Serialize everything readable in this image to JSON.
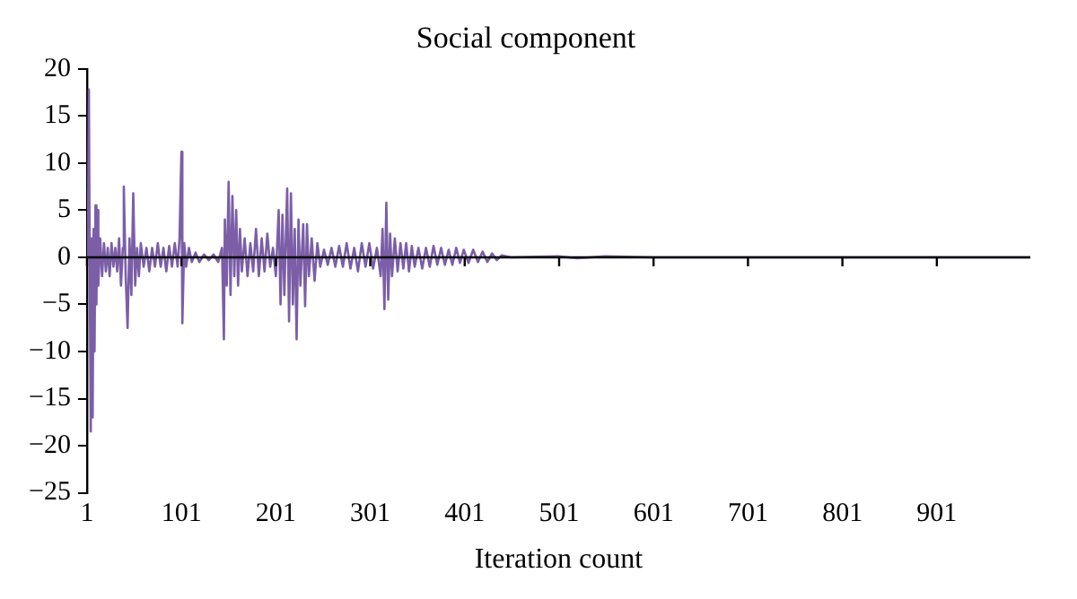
{
  "chart_data": {
    "type": "line",
    "title": "Social component",
    "xlabel": "Iteration count",
    "color": "#7b5ea7",
    "marker": "none",
    "xlim": [
      1,
      1000
    ],
    "xticks": [
      1,
      101,
      201,
      301,
      401,
      501,
      601,
      701,
      801,
      901
    ],
    "ylim": [
      -25,
      20
    ],
    "yticks": [
      -25,
      -20,
      -15,
      -10,
      -5,
      0,
      5,
      10,
      15,
      20
    ],
    "x": [
      1,
      2,
      3,
      4,
      5,
      6,
      7,
      8,
      9,
      10,
      11,
      12,
      13,
      15,
      17,
      19,
      21,
      23,
      25,
      27,
      29,
      31,
      33,
      35,
      37,
      39,
      40,
      42,
      44,
      46,
      48,
      50,
      52,
      54,
      56,
      58,
      61,
      64,
      67,
      70,
      73,
      76,
      79,
      82,
      85,
      88,
      91,
      94,
      97,
      99,
      101,
      102,
      104,
      106,
      109,
      112,
      116,
      120,
      125,
      130,
      135,
      140,
      144,
      146,
      147,
      149,
      151,
      153,
      155,
      157,
      159,
      161,
      163,
      165,
      168,
      171,
      174,
      177,
      180,
      183,
      186,
      189,
      192,
      195,
      198,
      201,
      204,
      206,
      208,
      210,
      213,
      215,
      217,
      219,
      221,
      223,
      225,
      227,
      230,
      232,
      234,
      236,
      239,
      242,
      245,
      248,
      252,
      256,
      260,
      264,
      268,
      272,
      276,
      280,
      284,
      288,
      292,
      296,
      300,
      304,
      308,
      312,
      314,
      316,
      318,
      320,
      322,
      324,
      327,
      330,
      333,
      336,
      339,
      342,
      345,
      348,
      352,
      356,
      360,
      364,
      368,
      372,
      376,
      380,
      384,
      388,
      392,
      396,
      400,
      405,
      410,
      415,
      420,
      425,
      430,
      435,
      440,
      450,
      500,
      520,
      550,
      600,
      1000
    ],
    "values": [
      0,
      1.5,
      17.8,
      -3,
      -18.5,
      2,
      -17,
      3,
      -10,
      5.5,
      -5,
      5,
      -3,
      2,
      -2,
      1.5,
      -1.5,
      1,
      -2,
      1.5,
      -1,
      1,
      -1.5,
      2,
      -3,
      1,
      7.5,
      -2,
      -7.5,
      2,
      -4,
      6.8,
      -3,
      1,
      -2,
      1.5,
      -1,
      1,
      -1.5,
      1,
      -1,
      1.5,
      -1,
      1,
      -1.5,
      1.2,
      -1,
      1.5,
      -1,
      2,
      11.2,
      -7,
      1.5,
      -1,
      1,
      -0.5,
      0.5,
      -0.5,
      0.3,
      -0.3,
      0.3,
      -0.5,
      1,
      -8.7,
      4,
      -3,
      8,
      -4,
      6.5,
      -2,
      5,
      -3,
      3,
      -1.5,
      2,
      -2,
      1.5,
      -1.5,
      3,
      -2,
      2,
      -1.5,
      2.5,
      -1,
      1,
      -2,
      5,
      -5,
      4.5,
      -4,
      7.3,
      -6.8,
      6.8,
      -5,
      3,
      -8.7,
      4,
      -3,
      3.5,
      -5.2,
      3.5,
      -2,
      2,
      -2.5,
      1.5,
      -1,
      0.8,
      -0.8,
      1,
      -1,
      1.2,
      -1,
      1.5,
      -1.2,
      1,
      -1.5,
      1.5,
      -1,
      1.5,
      -1.2,
      1,
      -2,
      3,
      -5.5,
      5.8,
      -4.5,
      2.5,
      -2,
      2,
      -1.5,
      1.5,
      -1.2,
      1.5,
      -1.5,
      1.2,
      -1,
      1,
      -1.2,
      1,
      -1,
      1.2,
      -0.8,
      1,
      -0.8,
      0.8,
      -0.8,
      1,
      -0.6,
      0.8,
      -0.6,
      0.8,
      -0.5,
      0.6,
      -0.5,
      0.4,
      -0.3,
      0.2,
      0,
      0.1,
      -0.1,
      0.1,
      0,
      0
    ]
  }
}
